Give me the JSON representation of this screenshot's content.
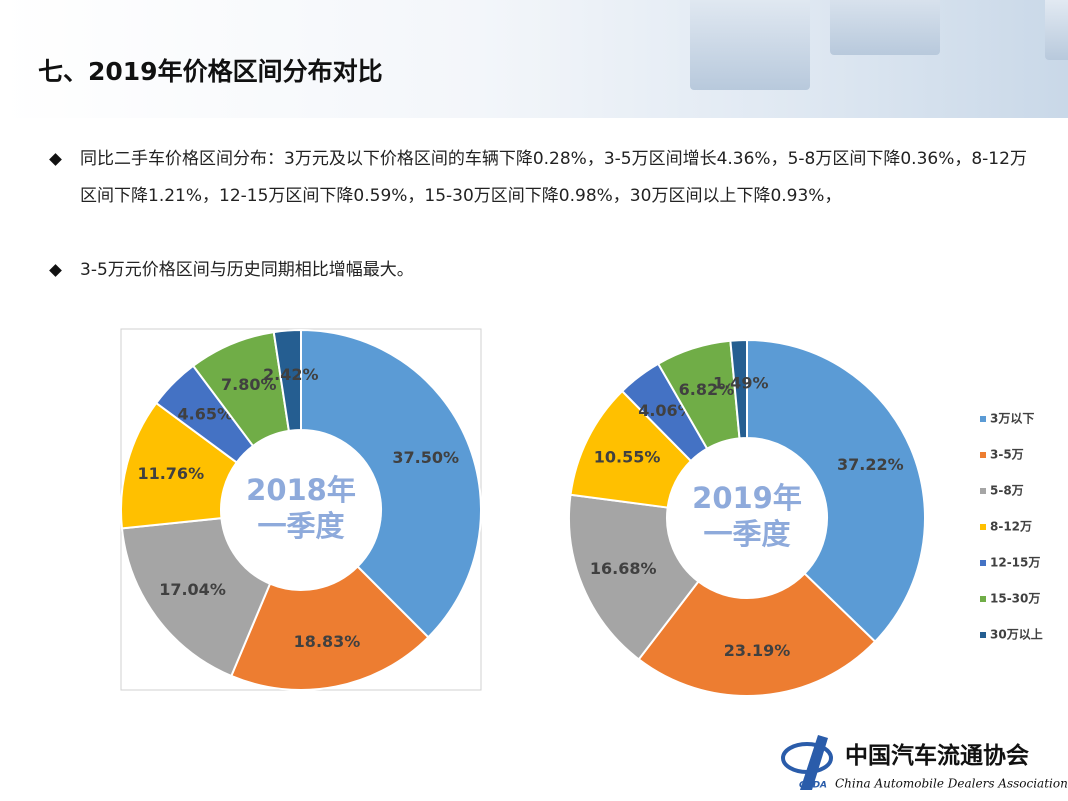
{
  "header": {
    "title": "七、2019年价格区间分布对比"
  },
  "bullets": [
    "同比二手车价格区间分布：3万元及以下价格区间的车辆下降0.28%，3-5万区间增长4.36%，5-8万区间下降0.36%，8-12万区间下降1.21%，12-15万区间下降0.59%，15-30万区间下降0.98%，30万区间以上下降0.93%，",
    "3-5万元价格区间与历史同期相比增幅最大。"
  ],
  "chart_data": [
    {
      "type": "donut",
      "center_text": [
        "2018年",
        "一季度"
      ],
      "values": [
        37.5,
        18.83,
        17.04,
        11.76,
        4.65,
        7.8,
        2.42
      ],
      "value_labels": [
        "37.50%",
        "18.83%",
        "17.04%",
        "11.76%",
        "4.65%",
        "7.80%",
        "2.42%"
      ],
      "colors": [
        "#5b9bd5",
        "#ed7d31",
        "#a5a5a5",
        "#ffc000",
        "#4472c4",
        "#70ad47",
        "#255e91"
      ]
    },
    {
      "type": "donut",
      "center_text": [
        "2019年",
        "一季度"
      ],
      "categories": [
        "3万以下",
        "3-5万",
        "5-8万",
        "8-12万",
        "12-15万",
        "15-30万",
        "30万以上"
      ],
      "values": [
        37.22,
        23.19,
        16.68,
        10.55,
        4.06,
        6.82,
        1.49
      ],
      "value_labels": [
        "37.22%",
        "23.19%",
        "16.68%",
        "10.55%",
        "4.06%",
        "6.82%",
        "1.49%"
      ],
      "colors": [
        "#5b9bd5",
        "#ed7d31",
        "#a5a5a5",
        "#ffc000",
        "#4472c4",
        "#70ad47",
        "#255e91"
      ],
      "legend": "right"
    }
  ],
  "logo": {
    "abbr": "CADA",
    "name": "中国汽车流通协会",
    "english": "China Automobile Dealers Association"
  }
}
